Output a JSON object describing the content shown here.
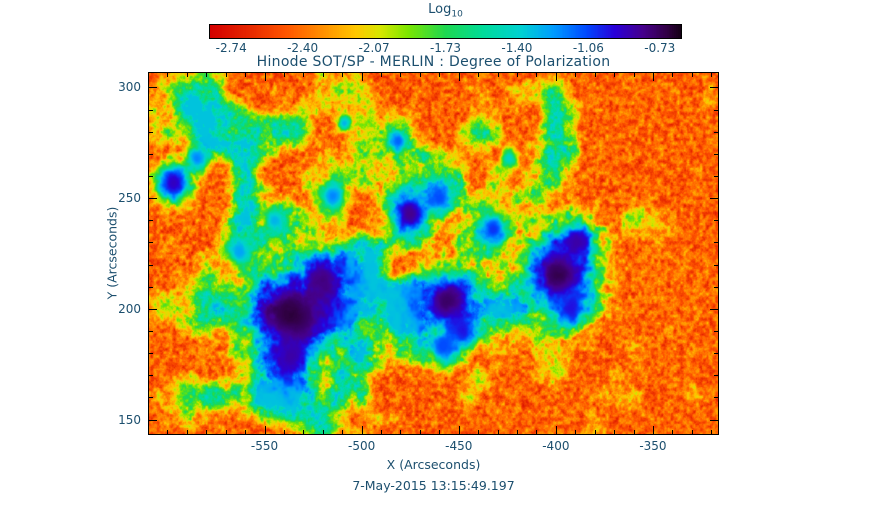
{
  "page": {
    "background": "#ffffff"
  },
  "text_color": "#1c4f6e",
  "chart_data": {
    "type": "heatmap",
    "title": "Hinode SOT/SP - MERLIN : Degree of Polarization",
    "xlabel": "X (Arcseconds)",
    "ylabel": "Y (Arcseconds)",
    "timestamp": "7-May-2015 13:15:49.197",
    "xlim": [
      -610,
      -316
    ],
    "ylim": [
      143,
      307
    ],
    "x_ticks": [
      -550,
      -500,
      -450,
      -400,
      -350
    ],
    "y_ticks": [
      150,
      200,
      250,
      300
    ],
    "x_minor_step": 10,
    "y_minor_step": 10,
    "grid": false,
    "colorbar": {
      "label": "Log",
      "label_subscript": "10",
      "ticks": [
        -2.74,
        -2.4,
        -2.07,
        -1.73,
        -1.4,
        -1.06,
        -0.73
      ],
      "range": [
        -2.74,
        -0.73
      ],
      "orientation": "horizontal",
      "position": "top"
    },
    "value_units": "log10 degree of polarization",
    "background_level_log10": -2.45,
    "plage_level_log10": -1.7,
    "spot_core_level_log10": -0.8,
    "colormap_stops": [
      [
        0.0,
        "#d40000"
      ],
      [
        0.08,
        "#e62600"
      ],
      [
        0.16,
        "#ff5500"
      ],
      [
        0.24,
        "#ff9000"
      ],
      [
        0.31,
        "#ffc800"
      ],
      [
        0.36,
        "#d8e600"
      ],
      [
        0.42,
        "#7ce600"
      ],
      [
        0.5,
        "#1ed850"
      ],
      [
        0.58,
        "#00dc9a"
      ],
      [
        0.66,
        "#00d2d2"
      ],
      [
        0.73,
        "#009cff"
      ],
      [
        0.8,
        "#0048ff"
      ],
      [
        0.86,
        "#2a00d8"
      ],
      [
        0.92,
        "#46008c"
      ],
      [
        0.97,
        "#320046"
      ],
      [
        1.0,
        "#140014"
      ]
    ],
    "features_format": [
      "x_arcsec",
      "y_arcsec",
      "radius_arcsec",
      "peak_scale_0to1"
    ],
    "features": [
      [
        -537,
        197,
        24,
        0.98
      ],
      [
        -520,
        213,
        14,
        0.93
      ],
      [
        -537,
        178,
        12,
        0.9
      ],
      [
        -456,
        203,
        16,
        0.95
      ],
      [
        -448,
        190,
        9,
        0.85
      ],
      [
        -398,
        215,
        21,
        0.97
      ],
      [
        -389,
        230,
        11,
        0.9
      ],
      [
        -392,
        200,
        10,
        0.85
      ],
      [
        -475,
        243,
        12,
        0.92
      ],
      [
        -460,
        250,
        8,
        0.8
      ],
      [
        -432,
        236,
        9,
        0.82
      ],
      [
        -597,
        257,
        10,
        0.88
      ],
      [
        -585,
        268,
        7,
        0.75
      ],
      [
        -563,
        226,
        7,
        0.72
      ],
      [
        -545,
        240,
        6,
        0.7
      ],
      [
        -515,
        251,
        8,
        0.75
      ],
      [
        -481,
        276,
        5,
        0.78
      ],
      [
        -509,
        284,
        4,
        0.7
      ],
      [
        -458,
        183,
        9,
        0.8
      ],
      [
        -424,
        268,
        5,
        0.65
      ]
    ],
    "plage_regions_format": [
      "x_arcsec",
      "y_arcsec",
      "rx_arcsec",
      "ry_arcsec",
      "strength"
    ],
    "plage_regions": [
      [
        -480,
        213,
        100,
        62,
        1.0
      ],
      [
        -570,
        282,
        45,
        30,
        0.7
      ],
      [
        -545,
        165,
        45,
        25,
        0.6
      ],
      [
        -400,
        275,
        40,
        28,
        0.55
      ]
    ]
  }
}
